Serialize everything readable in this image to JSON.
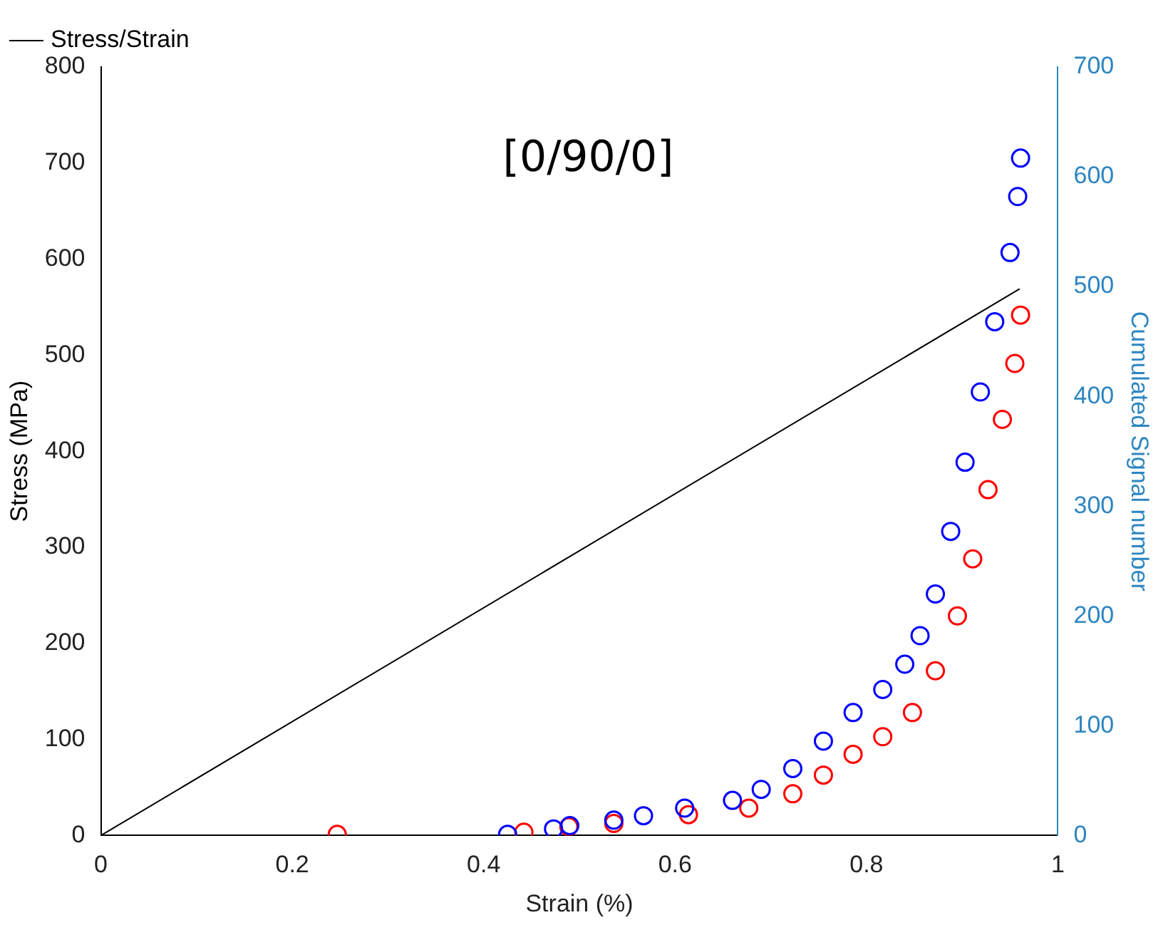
{
  "chart_data": {
    "type": "scatter",
    "xlabel": "Strain (%)",
    "ylabel": "Stress (MPa)",
    "y2label": "Cumulated Signal number",
    "annotations": [
      "[0/90/0]"
    ],
    "xlim": [
      0,
      1
    ],
    "xticks": [
      0,
      0.2,
      0.4,
      0.6,
      0.8,
      1
    ],
    "ylim": [
      0,
      800
    ],
    "yticks": [
      0,
      100,
      200,
      300,
      400,
      500,
      600,
      700,
      800
    ],
    "y2lim": [
      0,
      700
    ],
    "y2ticks": [
      0,
      100,
      200,
      300,
      400,
      500,
      600,
      700
    ],
    "legend": "top left",
    "grid": false,
    "series": [
      {
        "name": "Stress/Strain",
        "type": "line",
        "color": "#000000",
        "marker": "none",
        "x": [
          0,
          0.96
        ],
        "values": [
          0,
          569
        ]
      },
      {
        "marker": "circle",
        "axis": "y2",
        "color": "#0000ff",
        "x": [
          0.425,
          0.473,
          0.49,
          0.536,
          0.567,
          0.61,
          0.66,
          0.69,
          0.723,
          0.755,
          0.786,
          0.817,
          0.84,
          0.856,
          0.872,
          0.888,
          0.903,
          0.919,
          0.934,
          0.95,
          0.958,
          0.961
        ],
        "values": [
          1,
          6,
          9,
          14,
          18,
          25,
          32,
          42,
          61,
          86,
          112,
          133,
          156,
          182,
          220,
          277,
          340,
          404,
          468,
          531,
          582,
          617
        ]
      },
      {
        "marker": "circle",
        "axis": "y2",
        "color": "#ff0000",
        "x": [
          0.247,
          0.442,
          0.489,
          0.536,
          0.614,
          0.677,
          0.723,
          0.755,
          0.786,
          0.817,
          0.848,
          0.872,
          0.895,
          0.911,
          0.927,
          0.942,
          0.955,
          0.961
        ],
        "values": [
          1,
          3,
          8,
          11,
          19,
          25,
          38,
          55,
          74,
          90,
          112,
          150,
          200,
          252,
          315,
          379,
          430,
          474
        ]
      }
    ]
  }
}
